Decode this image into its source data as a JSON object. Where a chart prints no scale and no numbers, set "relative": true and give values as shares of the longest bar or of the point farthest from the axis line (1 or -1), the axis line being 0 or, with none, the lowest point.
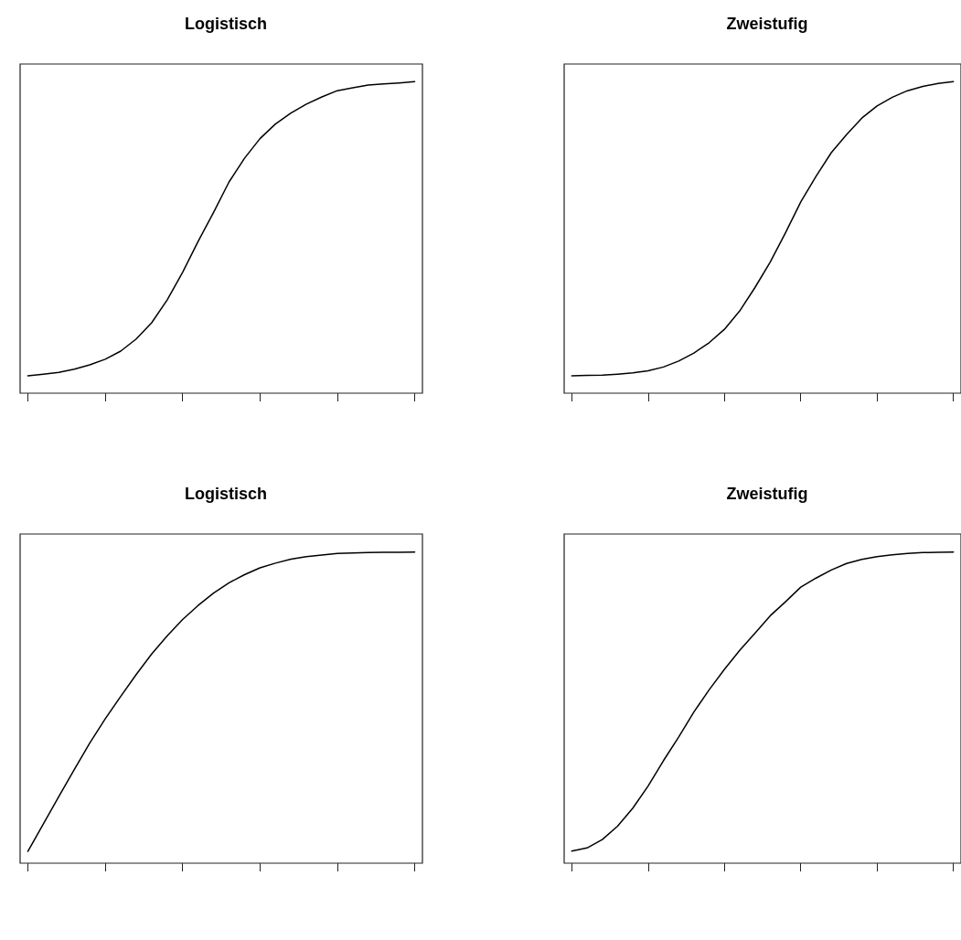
{
  "chart_data": [
    {
      "type": "line",
      "title": "Logistisch",
      "relative": true,
      "grid": false,
      "marker": "none",
      "line_style": "solid",
      "categories": [
        null,
        null,
        null,
        null,
        null,
        null,
        null,
        null,
        null,
        null,
        null,
        null,
        null,
        null,
        null,
        null,
        null,
        null,
        null,
        null,
        null,
        null,
        null,
        null,
        null,
        null
      ],
      "series": [
        {
          "color": "#000000",
          "values": [
            0.056,
            0.061,
            0.067,
            0.077,
            0.091,
            0.109,
            0.135,
            0.174,
            0.226,
            0.299,
            0.388,
            0.487,
            0.58,
            0.678,
            0.754,
            0.817,
            0.864,
            0.899,
            0.928,
            0.951,
            0.971,
            0.98,
            0.989,
            0.993,
            0.996,
            1
          ]
        }
      ]
    },
    {
      "type": "line",
      "title": "Zweistufig",
      "relative": true,
      "grid": false,
      "marker": "none",
      "line_style": "solid",
      "categories": [
        null,
        null,
        null,
        null,
        null,
        null,
        null,
        null,
        null,
        null,
        null,
        null,
        null,
        null,
        null,
        null,
        null,
        null,
        null,
        null,
        null,
        null,
        null,
        null,
        null,
        null
      ],
      "series": [
        {
          "color": "#000000",
          "values": [
            0.056,
            0.057,
            0.058,
            0.061,
            0.065,
            0.072,
            0.084,
            0.103,
            0.129,
            0.162,
            0.205,
            0.264,
            0.339,
            0.421,
            0.515,
            0.614,
            0.696,
            0.772,
            0.83,
            0.883,
            0.922,
            0.95,
            0.971,
            0.985,
            0.994,
            1
          ]
        }
      ]
    },
    {
      "type": "line",
      "title": "Logistisch",
      "relative": true,
      "grid": false,
      "marker": "none",
      "line_style": "solid",
      "categories": [
        null,
        null,
        null,
        null,
        null,
        null,
        null,
        null,
        null,
        null,
        null,
        null,
        null,
        null,
        null,
        null,
        null,
        null,
        null,
        null,
        null,
        null,
        null,
        null,
        null,
        null
      ],
      "series": [
        {
          "color": "#000000",
          "values": [
            0.038,
            0.126,
            0.214,
            0.301,
            0.386,
            0.464,
            0.536,
            0.606,
            0.672,
            0.73,
            0.783,
            0.828,
            0.868,
            0.901,
            0.927,
            0.949,
            0.964,
            0.977,
            0.985,
            0.99,
            0.995,
            0.997,
            0.998,
            0.999,
            0.999,
            1
          ]
        }
      ]
    },
    {
      "type": "line",
      "title": "Zweistufig",
      "relative": true,
      "grid": false,
      "marker": "none",
      "line_style": "solid",
      "categories": [
        null,
        null,
        null,
        null,
        null,
        null,
        null,
        null,
        null,
        null,
        null,
        null,
        null,
        null,
        null,
        null,
        null,
        null,
        null,
        null,
        null,
        null,
        null,
        null,
        null,
        null
      ],
      "series": [
        {
          "color": "#000000",
          "values": [
            0.039,
            0.049,
            0.076,
            0.119,
            0.177,
            0.248,
            0.329,
            0.405,
            0.486,
            0.557,
            0.623,
            0.684,
            0.739,
            0.795,
            0.84,
            0.887,
            0.916,
            0.942,
            0.963,
            0.976,
            0.985,
            0.991,
            0.995,
            0.998,
            0.999,
            1
          ]
        }
      ]
    }
  ]
}
